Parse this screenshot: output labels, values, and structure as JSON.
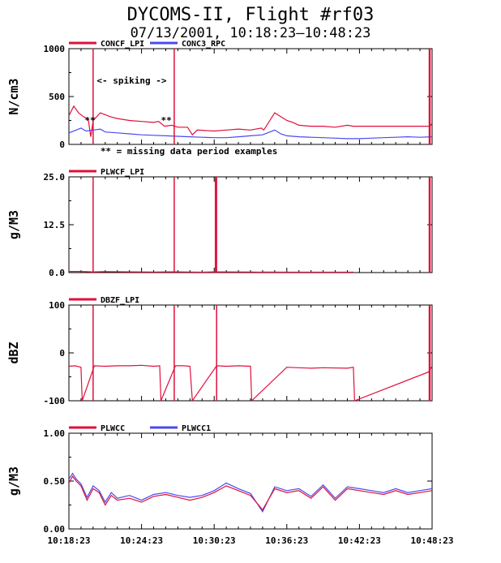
{
  "title": "DYCOMS-II, Flight #rf03",
  "subtitle": "07/13/2001, 10:18:23–10:48:23",
  "x_tick_labels": [
    "10:18:23",
    "10:24:23",
    "10:30:23",
    "10:36:23",
    "10:42:23",
    "10:48:23"
  ],
  "colors": {
    "red": "#e0103c",
    "blue": "#4a4af0",
    "axis": "#000000"
  },
  "chart_data": [
    {
      "type": "line",
      "ylabel": "N/cm3",
      "ylim": [
        0,
        1000
      ],
      "y_tick_labels": [
        "0",
        "500",
        "1000"
      ],
      "x_unit": "minutes after 10:18:23",
      "xlim": [
        0,
        30
      ],
      "series": [
        {
          "name": "CONCF_LPI",
          "color": "#e0103c",
          "x": [
            0,
            0.4,
            0.8,
            1.2,
            1.6,
            1.8,
            2.0,
            2.6,
            3.0,
            3.4,
            4.0,
            5.0,
            6.0,
            7.0,
            7.4,
            7.9,
            8.5,
            9.0,
            9.8,
            10.2,
            10.6,
            12.0,
            13.0,
            14.0,
            15.0,
            15.9,
            16.1,
            17.0,
            18.0,
            18.5,
            19.0,
            20.0,
            21.0,
            22.0,
            23.0,
            23.5,
            29.8,
            29.9,
            30.0
          ],
          "y": [
            300,
            400,
            330,
            290,
            260,
            80,
            250,
            330,
            310,
            290,
            270,
            250,
            240,
            230,
            240,
            190,
            200,
            180,
            180,
            100,
            150,
            140,
            150,
            160,
            150,
            170,
            150,
            330,
            250,
            230,
            200,
            190,
            190,
            180,
            200,
            190,
            190,
            200,
            220
          ]
        },
        {
          "name": "CONC3_RPC",
          "color": "#4a4af0",
          "x": [
            0,
            0.6,
            1.0,
            1.4,
            2.0,
            2.6,
            3.0,
            4.0,
            5.0,
            6.0,
            7.0,
            8.0,
            9.0,
            10.0,
            11.0,
            12.0,
            13.0,
            14.0,
            15.0,
            16.0,
            17.0,
            17.5,
            18.0,
            19.0,
            20.0,
            21.0,
            22.0,
            23.0,
            24.0,
            25.0,
            26.0,
            27.0,
            28.0,
            29.0,
            30.0
          ],
          "y": [
            120,
            150,
            170,
            140,
            150,
            160,
            130,
            120,
            110,
            100,
            95,
            90,
            85,
            80,
            75,
            70,
            70,
            80,
            90,
            100,
            150,
            110,
            90,
            80,
            75,
            70,
            65,
            60,
            60,
            65,
            70,
            75,
            80,
            75,
            80
          ]
        }
      ],
      "spikes_x": [
        2.0,
        8.7,
        29.8
      ],
      "annotations": [
        "<- spiking ->",
        "**",
        "**",
        "** = missing data period examples"
      ]
    },
    {
      "type": "line",
      "ylabel": "g/M3",
      "ylim": [
        0,
        25
      ],
      "y_tick_labels": [
        "0.0",
        "12.5",
        "25.0"
      ],
      "xlim": [
        0,
        30
      ],
      "series": [
        {
          "name": "PLWCF_LPI",
          "color": "#e0103c",
          "x": [
            0,
            1.0,
            1.9,
            2.1,
            3.0,
            5.0,
            7.0,
            8.6,
            8.8,
            10.0,
            11.0,
            12.0,
            15.0,
            15.9,
            16.1,
            18.0,
            20.0,
            23.0,
            23.5
          ],
          "y": [
            0.3,
            0.3,
            0.2,
            0.2,
            0.25,
            0.2,
            0.15,
            0.2,
            0.2,
            0.15,
            0.1,
            0.2,
            0.15,
            0.1,
            0.15,
            0.1,
            0.1,
            0.1,
            0.1
          ]
        }
      ],
      "spikes_x": [
        2.0,
        8.7,
        12.1,
        12.2,
        29.8
      ]
    },
    {
      "type": "line",
      "ylabel": "dBZ",
      "ylim": [
        -100,
        100
      ],
      "y_tick_labels": [
        "-100",
        "0",
        "100"
      ],
      "xlim": [
        0,
        30
      ],
      "series": [
        {
          "name": "DBZF_LPI",
          "color": "#e0103c",
          "x": [
            0,
            0.5,
            1.0,
            1.1,
            2.1,
            3.0,
            4.0,
            5.0,
            6.0,
            7.0,
            7.5,
            7.6,
            8.8,
            9.5,
            10.0,
            10.2,
            12.2,
            13.0,
            14.0,
            15.0,
            15.1,
            18.0,
            19.0,
            20.0,
            21.0,
            23.0,
            23.5,
            23.6,
            29.7,
            30.0
          ],
          "y": [
            -28,
            -27,
            -30,
            -100,
            -27,
            -28,
            -27,
            -27,
            -26,
            -28,
            -27,
            -100,
            -27,
            -27,
            -28,
            -100,
            -27,
            -28,
            -27,
            -28,
            -100,
            -30,
            -31,
            -32,
            -31,
            -32,
            -30,
            -100,
            -40,
            -28
          ],
          "gaps_at": [
            1.1,
            7.6,
            10.2,
            15.1,
            23.6
          ]
        }
      ],
      "spikes_x": [
        2.0,
        8.7,
        12.2,
        29.8
      ]
    },
    {
      "type": "line",
      "ylabel": "g/M3",
      "ylim": [
        0,
        1
      ],
      "y_tick_labels": [
        "0.00",
        "0.50",
        "1.00"
      ],
      "xlim": [
        0,
        30
      ],
      "series": [
        {
          "name": "PLWCC",
          "color": "#e0103c",
          "x": [
            0,
            0.3,
            0.6,
            1.0,
            1.5,
            2.0,
            2.5,
            3.0,
            3.5,
            4.0,
            5.0,
            6.0,
            7.0,
            8.0,
            9.0,
            10.0,
            11.0,
            12.0,
            13.0,
            14.0,
            15.0,
            16.0,
            17.0,
            18.0,
            19.0,
            20.0,
            21.0,
            22.0,
            23.0,
            24.0,
            25.0,
            26.0,
            27.0,
            28.0,
            29.0,
            30.0
          ],
          "y": [
            0.48,
            0.55,
            0.5,
            0.45,
            0.3,
            0.42,
            0.38,
            0.25,
            0.35,
            0.3,
            0.32,
            0.28,
            0.34,
            0.36,
            0.33,
            0.3,
            0.33,
            0.38,
            0.45,
            0.4,
            0.35,
            0.2,
            0.42,
            0.38,
            0.4,
            0.32,
            0.44,
            0.3,
            0.42,
            0.4,
            0.38,
            0.36,
            0.4,
            0.36,
            0.38,
            0.4
          ]
        },
        {
          "name": "PLWCC1",
          "color": "#4a4af0",
          "x": [
            0,
            0.3,
            0.6,
            1.0,
            1.5,
            2.0,
            2.5,
            3.0,
            3.5,
            4.0,
            5.0,
            6.0,
            7.0,
            8.0,
            9.0,
            10.0,
            11.0,
            12.0,
            13.0,
            14.0,
            15.0,
            16.0,
            17.0,
            18.0,
            19.0,
            20.0,
            21.0,
            22.0,
            23.0,
            24.0,
            25.0,
            26.0,
            27.0,
            28.0,
            29.0,
            30.0
          ],
          "y": [
            0.52,
            0.58,
            0.52,
            0.47,
            0.33,
            0.45,
            0.4,
            0.28,
            0.38,
            0.32,
            0.35,
            0.3,
            0.36,
            0.38,
            0.35,
            0.33,
            0.35,
            0.4,
            0.48,
            0.42,
            0.37,
            0.18,
            0.44,
            0.4,
            0.42,
            0.34,
            0.46,
            0.32,
            0.44,
            0.42,
            0.4,
            0.38,
            0.42,
            0.38,
            0.4,
            0.42
          ]
        }
      ]
    }
  ]
}
